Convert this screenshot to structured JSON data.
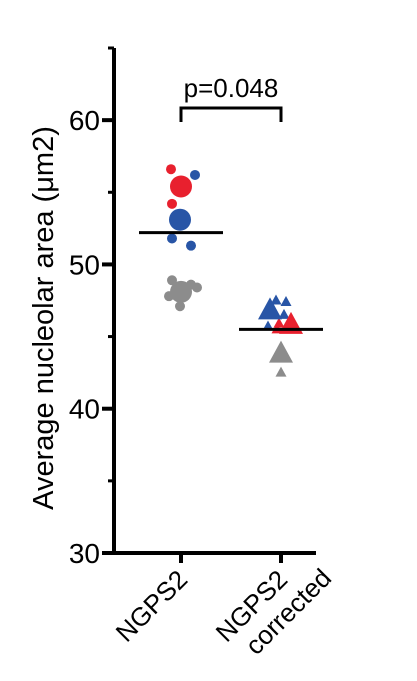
{
  "chart_data": {
    "type": "scatter",
    "ylabel": "Average nucleolar area (μm2)",
    "ylim": [
      30,
      65
    ],
    "yticks": [
      30,
      40,
      50,
      60
    ],
    "categories": [
      {
        "id": "ngps2",
        "lines": [
          "NGPS2"
        ]
      },
      {
        "id": "ngps2_corrected",
        "lines": [
          "NGPS2",
          "corrected"
        ]
      }
    ],
    "colors": {
      "red": "#e8202e",
      "blue": "#2855a6",
      "gray": "#8c8c8c",
      "axis": "#000000"
    },
    "series": [
      {
        "category": "ngps2",
        "marker": "circle",
        "mean": 52.2,
        "points": [
          {
            "y": 56.6,
            "color": "red",
            "big": false,
            "dx": -1.0
          },
          {
            "y": 56.2,
            "color": "blue",
            "big": false,
            "dx": 1.4
          },
          {
            "y": 55.4,
            "color": "red",
            "big": true,
            "dx": 0.0
          },
          {
            "y": 54.2,
            "color": "red",
            "big": false,
            "dx": -0.9
          },
          {
            "y": 53.1,
            "color": "blue",
            "big": true,
            "dx": -0.1
          },
          {
            "y": 51.8,
            "color": "blue",
            "big": false,
            "dx": -0.9
          },
          {
            "y": 51.3,
            "color": "blue",
            "big": false,
            "dx": 1.0
          },
          {
            "y": 48.9,
            "color": "gray",
            "big": false,
            "dx": -0.9
          },
          {
            "y": 48.6,
            "color": "gray",
            "big": false,
            "dx": 1.0
          },
          {
            "y": 48.4,
            "color": "gray",
            "big": false,
            "dx": 1.6
          },
          {
            "y": 48.1,
            "color": "gray",
            "big": true,
            "dx": 0.0
          },
          {
            "y": 47.8,
            "color": "gray",
            "big": false,
            "dx": -1.2
          },
          {
            "y": 47.1,
            "color": "gray",
            "big": false,
            "dx": -0.1
          }
        ]
      },
      {
        "category": "ngps2_corrected",
        "marker": "triangle",
        "mean": 45.5,
        "points": [
          {
            "y": 47.5,
            "color": "blue",
            "big": false,
            "dx": -0.5
          },
          {
            "y": 47.4,
            "color": "blue",
            "big": false,
            "dx": 0.5
          },
          {
            "y": 46.8,
            "color": "blue",
            "big": true,
            "dx": -1.1
          },
          {
            "y": 46.5,
            "color": "blue",
            "big": false,
            "dx": 0.3
          },
          {
            "y": 45.9,
            "color": "red",
            "big": false,
            "dx": -0.2
          },
          {
            "y": 45.8,
            "color": "red",
            "big": false,
            "dx": 1.0
          },
          {
            "y": 45.8,
            "color": "red",
            "big": true,
            "dx": 1.0
          },
          {
            "y": 45.5,
            "color": "red",
            "big": false,
            "dx": -0.4
          },
          {
            "y": 45.7,
            "color": "blue",
            "big": false,
            "dx": -1.3
          },
          {
            "y": 43.8,
            "color": "gray",
            "big": true,
            "dx": 0.0
          },
          {
            "y": 42.5,
            "color": "gray",
            "big": false,
            "dx": 0.0
          }
        ]
      }
    ],
    "annotation": {
      "text": "p=0.048",
      "between": [
        "ngps2",
        "ngps2_corrected"
      ]
    }
  }
}
